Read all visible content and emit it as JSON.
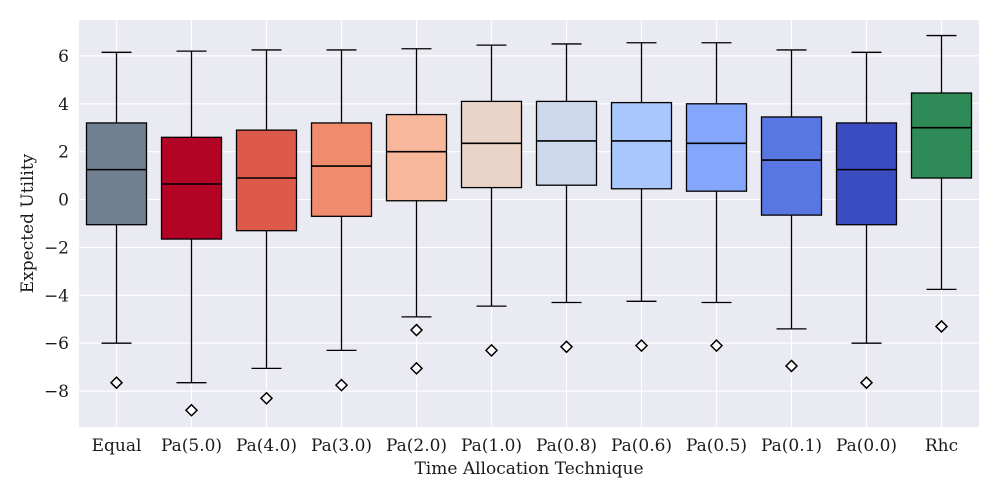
{
  "chart_data": {
    "type": "box",
    "xlabel": "Time Allocation Technique",
    "ylabel": "Expected Utility",
    "ylim": [
      -9.5,
      7.5
    ],
    "yticks": [
      -8,
      -6,
      -4,
      -2,
      0,
      2,
      4,
      6
    ],
    "ytick_labels": [
      "−8",
      "−6",
      "−4",
      "−2",
      "0",
      "2",
      "4",
      "6"
    ],
    "grid": true,
    "background": "#eaeaf2",
    "categories": [
      {
        "label": "Equal",
        "color": "#708090",
        "whisker_low": -6.0,
        "q1": -1.05,
        "median": 1.25,
        "q3": 3.2,
        "whisker_high": 6.15,
        "outliers": [
          -7.65
        ]
      },
      {
        "label": "Pa(5.0)",
        "color": "#b40426",
        "whisker_low": -7.65,
        "q1": -1.65,
        "median": 0.65,
        "q3": 2.6,
        "whisker_high": 6.2,
        "outliers": [
          -8.8
        ]
      },
      {
        "label": "Pa(4.0)",
        "color": "#dd5a4a",
        "whisker_low": -7.05,
        "q1": -1.3,
        "median": 0.9,
        "q3": 2.9,
        "whisker_high": 6.25,
        "outliers": [
          -8.3
        ]
      },
      {
        "label": "Pa(3.0)",
        "color": "#f08b6e",
        "whisker_low": -6.3,
        "q1": -0.7,
        "median": 1.4,
        "q3": 3.2,
        "whisker_high": 6.25,
        "outliers": [
          -7.75
        ]
      },
      {
        "label": "Pa(2.0)",
        "color": "#f7b79a",
        "whisker_low": -4.9,
        "q1": -0.05,
        "median": 2.0,
        "q3": 3.55,
        "whisker_high": 6.3,
        "outliers": [
          -5.45,
          -7.05
        ]
      },
      {
        "label": "Pa(1.0)",
        "color": "#ead4c8",
        "whisker_low": -4.45,
        "q1": 0.5,
        "median": 2.35,
        "q3": 4.1,
        "whisker_high": 6.45,
        "outliers": [
          -6.3
        ]
      },
      {
        "label": "Pa(0.8)",
        "color": "#ccd9ed",
        "whisker_low": -4.3,
        "q1": 0.6,
        "median": 2.45,
        "q3": 4.1,
        "whisker_high": 6.5,
        "outliers": [
          -6.15
        ]
      },
      {
        "label": "Pa(0.6)",
        "color": "#aac7fd",
        "whisker_low": -4.25,
        "q1": 0.45,
        "median": 2.45,
        "q3": 4.05,
        "whisker_high": 6.55,
        "outliers": [
          -6.1
        ]
      },
      {
        "label": "Pa(0.5)",
        "color": "#84a7fc",
        "whisker_low": -4.3,
        "q1": 0.35,
        "median": 2.35,
        "q3": 4.0,
        "whisker_high": 6.55,
        "outliers": [
          -6.1
        ]
      },
      {
        "label": "Pa(0.1)",
        "color": "#5977e3",
        "whisker_low": -5.4,
        "q1": -0.65,
        "median": 1.65,
        "q3": 3.45,
        "whisker_high": 6.25,
        "outliers": [
          -6.95
        ]
      },
      {
        "label": "Pa(0.0)",
        "color": "#3b4cc0",
        "whisker_low": -6.0,
        "q1": -1.05,
        "median": 1.25,
        "q3": 3.2,
        "whisker_high": 6.15,
        "outliers": [
          -7.65
        ]
      },
      {
        "label": "Rhc",
        "color": "#2e8b57",
        "whisker_low": -3.75,
        "q1": 0.9,
        "median": 3.0,
        "q3": 4.45,
        "whisker_high": 6.85,
        "outliers": [
          -5.3
        ]
      }
    ]
  }
}
